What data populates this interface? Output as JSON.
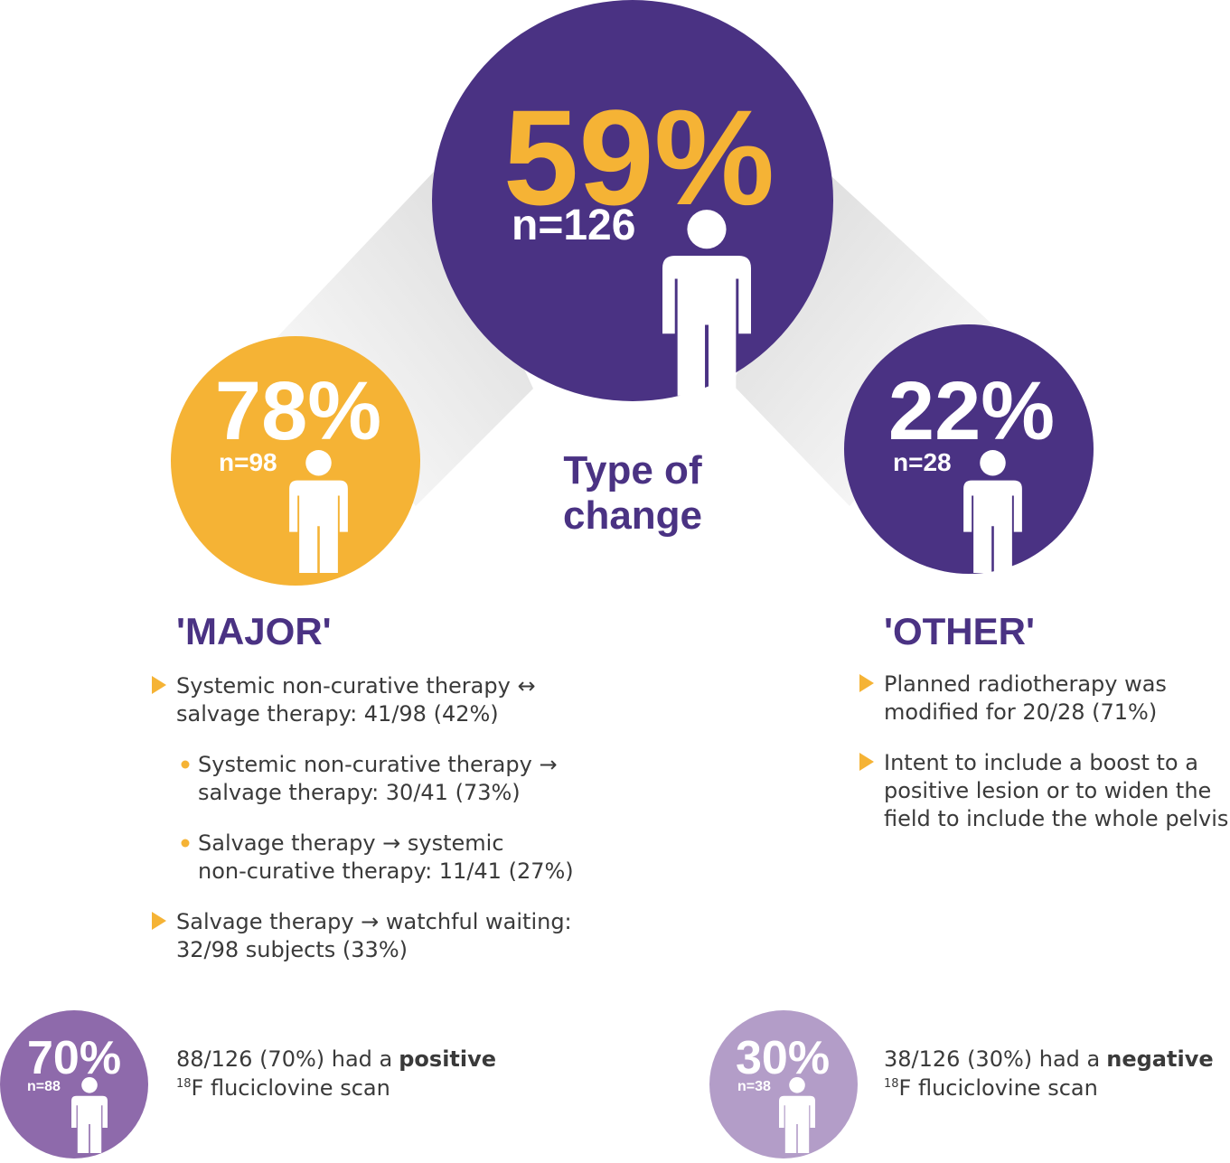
{
  "center": {
    "percent": "59%",
    "n": "n=126",
    "label_lines": [
      "Type of",
      "change"
    ]
  },
  "major": {
    "percent": "78%",
    "n": "n=98",
    "heading": "'MAJOR'",
    "items": [
      {
        "lines": [
          "Systemic non-curative therapy ↔",
          "salvage therapy: 41/98 (42%)"
        ],
        "sub": [
          {
            "lines": [
              "Systemic non-curative therapy →",
              "salvage therapy: 30/41 (73%)"
            ]
          },
          {
            "lines": [
              "Salvage therapy → systemic",
              "non-curative therapy: 11/41 (27%)"
            ]
          }
        ]
      },
      {
        "lines": [
          "Salvage therapy → watchful waiting:",
          "32/98 subjects (33%)"
        ],
        "sub": []
      }
    ]
  },
  "other": {
    "percent": "22%",
    "n": "n=28",
    "heading": "'OTHER'",
    "items": [
      {
        "lines": [
          "Planned radiotherapy was",
          "modified for 20/28 (71%)"
        ],
        "sub": []
      },
      {
        "lines": [
          "Intent to include a boost to a",
          "positive lesion or to widen the",
          "field to include the whole pelvis"
        ],
        "sub": []
      }
    ]
  },
  "positive": {
    "percent": "70%",
    "n": "n=88",
    "text": "88/126 (70%) had a",
    "bold": "positive",
    "sup": "18",
    "rest": "F fluciclovine scan"
  },
  "negative": {
    "percent": "30%",
    "n": "n=38",
    "text": "38/126 (30%) had a",
    "bold": "negative",
    "sup": "18",
    "rest": "F fluciclovine scan"
  }
}
